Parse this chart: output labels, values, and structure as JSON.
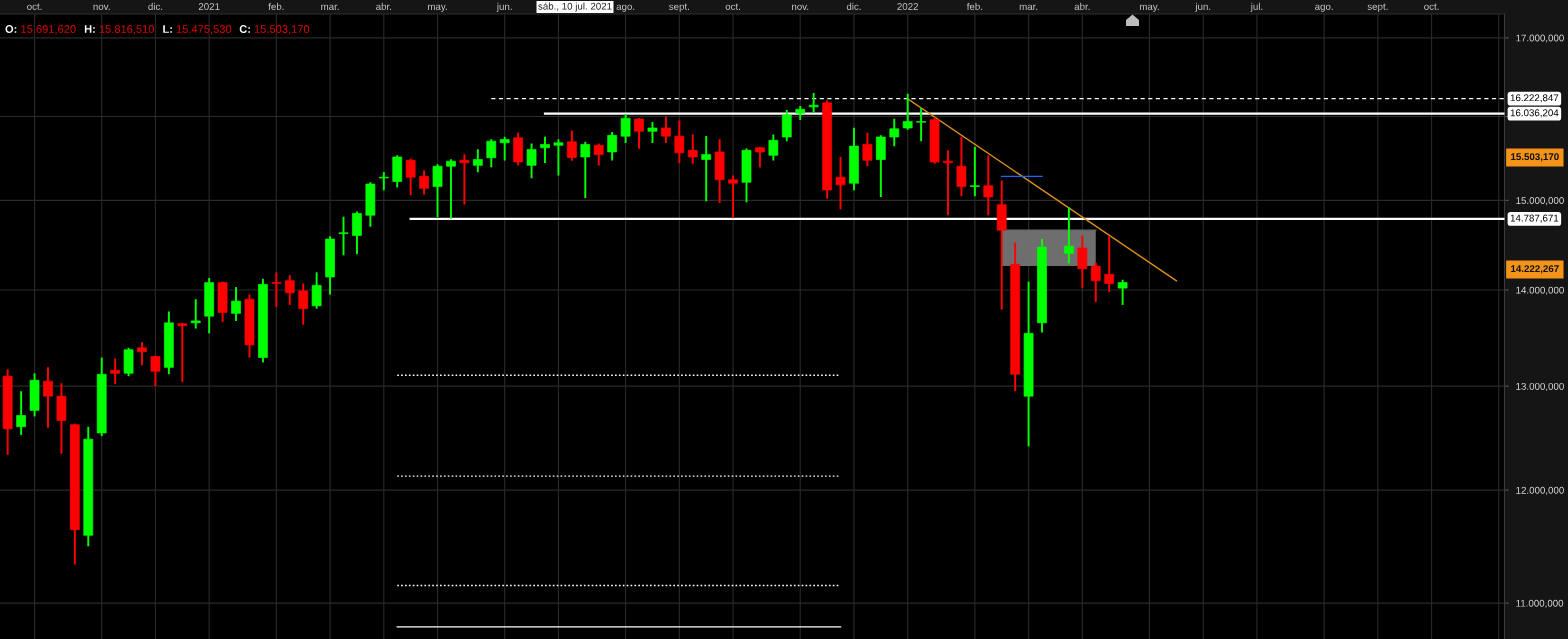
{
  "chart_data": {
    "type": "candlestick",
    "x": [
      "2020-09-19",
      "2020-09-26",
      "2020-10-03",
      "2020-10-10",
      "2020-10-17",
      "2020-10-24",
      "2020-10-31",
      "2020-11-07",
      "2020-11-14",
      "2020-11-21",
      "2020-11-28",
      "2020-12-05",
      "2020-12-12",
      "2020-12-19",
      "2020-12-26",
      "2021-01-02",
      "2021-01-09",
      "2021-01-16",
      "2021-01-23",
      "2021-01-30",
      "2021-02-06",
      "2021-02-13",
      "2021-02-20",
      "2021-02-27",
      "2021-03-06",
      "2021-03-13",
      "2021-03-20",
      "2021-03-27",
      "2021-04-03",
      "2021-04-10",
      "2021-04-17",
      "2021-04-24",
      "2021-05-01",
      "2021-05-08",
      "2021-05-15",
      "2021-05-22",
      "2021-05-29",
      "2021-06-05",
      "2021-06-12",
      "2021-06-19",
      "2021-06-26",
      "2021-07-03",
      "2021-07-10",
      "2021-07-17",
      "2021-07-24",
      "2021-07-31",
      "2021-08-07",
      "2021-08-14",
      "2021-08-21",
      "2021-08-28",
      "2021-09-04",
      "2021-09-11",
      "2021-09-18",
      "2021-09-25",
      "2021-10-02",
      "2021-10-09",
      "2021-10-16",
      "2021-10-23",
      "2021-10-30",
      "2021-11-06",
      "2021-11-13",
      "2021-11-20",
      "2021-11-27",
      "2021-12-04",
      "2021-12-11",
      "2021-12-18",
      "2021-12-25",
      "2022-01-01",
      "2022-01-08",
      "2022-01-15",
      "2022-01-22",
      "2022-01-29",
      "2022-02-05",
      "2022-02-12",
      "2022-02-19",
      "2022-02-26",
      "2022-03-05",
      "2022-03-12",
      "2022-03-26",
      "2022-04-02",
      "2022-04-09",
      "2022-04-16",
      "2022-04-23"
    ],
    "ohlc": [
      [
        13100,
        13160,
        12340,
        12580
      ],
      [
        12600,
        12940,
        12530,
        12710
      ],
      [
        12760,
        13120,
        12710,
        13060
      ],
      [
        13050,
        13180,
        12600,
        12900
      ],
      [
        12900,
        13020,
        12350,
        12660
      ],
      [
        12620,
        12620,
        11340,
        11640
      ],
      [
        11590,
        12590,
        11500,
        12480
      ],
      [
        12540,
        13280,
        12520,
        13120
      ],
      [
        13160,
        13270,
        13030,
        13130
      ],
      [
        13130,
        13380,
        13110,
        13370
      ],
      [
        13390,
        13440,
        13220,
        13350
      ],
      [
        13300,
        13300,
        13010,
        13150
      ],
      [
        13190,
        13760,
        13130,
        13650
      ],
      [
        13640,
        13640,
        13050,
        13620
      ],
      [
        13650,
        13890,
        13600,
        13670
      ],
      [
        13720,
        14120,
        13550,
        14080
      ],
      [
        14080,
        14080,
        13670,
        13760
      ],
      [
        13750,
        14020,
        13680,
        13880
      ],
      [
        13900,
        13940,
        13300,
        13420
      ],
      [
        13290,
        14110,
        13250,
        14060
      ],
      [
        14080,
        14180,
        13830,
        14070
      ],
      [
        14100,
        14150,
        13850,
        13970
      ],
      [
        13990,
        14060,
        13640,
        13800
      ],
      [
        13830,
        14180,
        13810,
        14050
      ],
      [
        14140,
        14580,
        13960,
        14560
      ],
      [
        14620,
        14800,
        14390,
        14630
      ],
      [
        14600,
        14860,
        14400,
        14850
      ],
      [
        14830,
        15200,
        14710,
        15190
      ],
      [
        15260,
        15320,
        15130,
        15270
      ],
      [
        15220,
        15520,
        15160,
        15510
      ],
      [
        15470,
        15480,
        15070,
        15270
      ],
      [
        15280,
        15340,
        15080,
        15140
      ],
      [
        15160,
        15410,
        14820,
        15400
      ],
      [
        15400,
        15470,
        14800,
        15460
      ],
      [
        15470,
        15530,
        14960,
        15440
      ],
      [
        15410,
        15590,
        15340,
        15480
      ],
      [
        15500,
        15710,
        15400,
        15700
      ],
      [
        15680,
        15740,
        15480,
        15720
      ],
      [
        15740,
        15790,
        15420,
        15450
      ],
      [
        15410,
        15660,
        15270,
        15600
      ],
      [
        15620,
        15740,
        15450,
        15660
      ],
      [
        15650,
        15710,
        15300,
        15680
      ],
      [
        15691.62,
        15816.51,
        15475.53,
        15503.17
      ],
      [
        15510,
        15680,
        15040,
        15660
      ],
      [
        15650,
        15660,
        15420,
        15540
      ],
      [
        15570,
        15800,
        15480,
        15770
      ],
      [
        15760,
        16020,
        15690,
        15980
      ],
      [
        15970,
        15970,
        15620,
        15820
      ],
      [
        15820,
        15920,
        15690,
        15860
      ],
      [
        15860,
        15990,
        15690,
        15760
      ],
      [
        15760,
        15940,
        15450,
        15560
      ],
      [
        15590,
        15770,
        15440,
        15510
      ],
      [
        15480,
        15750,
        15000,
        15540
      ],
      [
        15570,
        15710,
        14980,
        15240
      ],
      [
        15240,
        15280,
        14810,
        15200
      ],
      [
        15210,
        15600,
        14990,
        15590
      ],
      [
        15620,
        15620,
        15400,
        15570
      ],
      [
        15530,
        15770,
        15480,
        15710
      ],
      [
        15750,
        16070,
        15710,
        16020
      ],
      [
        16040,
        16120,
        15970,
        16090
      ],
      [
        16120,
        16280,
        16060,
        16140
      ],
      [
        16170,
        16190,
        15030,
        15120
      ],
      [
        15270,
        15500,
        14910,
        15180
      ],
      [
        15200,
        15850,
        15130,
        15640
      ],
      [
        15660,
        15790,
        15410,
        15470
      ],
      [
        15480,
        15760,
        15050,
        15750
      ],
      [
        15750,
        15960,
        15650,
        15850
      ],
      [
        15860,
        16270,
        15850,
        15940
      ],
      [
        15930,
        16090,
        15710,
        15940
      ],
      [
        15960,
        15980,
        15440,
        15450
      ],
      [
        15460,
        15580,
        14840,
        15440
      ],
      [
        15400,
        15740,
        15060,
        15160
      ],
      [
        15160,
        15620,
        15060,
        15170
      ],
      [
        15170,
        15520,
        14840,
        15040
      ],
      [
        14950,
        15220,
        13800,
        14660
      ],
      [
        14280,
        14510,
        12960,
        13120
      ],
      [
        12900,
        14080,
        12420,
        13540
      ],
      [
        13650,
        14550,
        13560,
        14470
      ],
      [
        14400,
        14910,
        14300,
        14480
      ],
      [
        14460,
        14590,
        14030,
        14230
      ],
      [
        14260,
        14290,
        13880,
        14100
      ],
      [
        14170,
        14580,
        13990,
        14070
      ],
      [
        14020,
        14100,
        13850,
        14080
      ]
    ],
    "colors": [
      "#ff0000",
      "#00ff00",
      "#00ff00",
      "#ff0000",
      "#ff0000",
      "#ff0000",
      "#00ff00",
      "#00ff00",
      "#ff0000",
      "#00ff00",
      "#ff0000",
      "#ff0000",
      "#00ff00",
      "#ff0000",
      "#00ff00",
      "#00ff00",
      "#ff0000",
      "#00ff00",
      "#ff0000",
      "#00ff00",
      "#ff0000",
      "#ff0000",
      "#ff0000",
      "#00ff00",
      "#00ff00",
      "#00ff00",
      "#00ff00",
      "#00ff00",
      "#00ff00",
      "#00ff00",
      "#ff0000",
      "#ff0000",
      "#00ff00",
      "#00ff00",
      "#ff0000",
      "#00ff00",
      "#00ff00",
      "#00ff00",
      "#ff0000",
      "#00ff00",
      "#00ff00",
      "#00ff00",
      "#ff0000",
      "#00ff00",
      "#ff0000",
      "#00ff00",
      "#00ff00",
      "#ff0000",
      "#00ff00",
      "#ff0000",
      "#ff0000",
      "#ff0000",
      "#00ff00",
      "#ff0000",
      "#ff0000",
      "#00ff00",
      "#ff0000",
      "#00ff00",
      "#00ff00",
      "#00ff00",
      "#00ff00",
      "#ff0000",
      "#ff0000",
      "#00ff00",
      "#ff0000",
      "#00ff00",
      "#00ff00",
      "#00ff00",
      "#00ff00",
      "#ff0000",
      "#ff0000",
      "#ff0000",
      "#00ff00",
      "#ff0000",
      "#ff0000",
      "#ff0000",
      "#00ff00",
      "#00ff00",
      "#00ff00",
      "#ff0000",
      "#ff0000",
      "#ff0000",
      "#00ff00"
    ],
    "series": [
      {
        "type": "line",
        "color": "#6e6e6e",
        "line_style": "solid",
        "x": [
          "2022-02-19",
          "2022-04-09"
        ],
        "values": [
          14660,
          14660
        ],
        "lower": [
          14260,
          14260
        ],
        "upper": [
          14660,
          14660
        ]
      },
      {
        "type": "line",
        "color": "#ffffff",
        "line_style": "dashed",
        "x": [
          "2021-05-29",
          "2022-11-08"
        ],
        "values": [
          16222.847,
          16222.847
        ],
        "value_labels": [
          null,
          "16.222,847"
        ]
      },
      {
        "type": "line",
        "color": "#ffffff",
        "line_style": "solid",
        "x": [
          "2021-06-26",
          "2022-11-08"
        ],
        "values": [
          16036.204,
          16036.204
        ],
        "value_labels": [
          null,
          "16.036,204"
        ]
      },
      {
        "type": "line",
        "color": "#ffffff",
        "line_style": "solid",
        "x": [
          "2021-04-17",
          "2022-11-08"
        ],
        "values": [
          14787.671,
          14787.671
        ],
        "value_labels": [
          null,
          "14.787,671"
        ]
      },
      {
        "type": "line",
        "color": "#e0901a",
        "line_style": "solid",
        "x": [
          "2022-01-01",
          "2022-05-21"
        ],
        "values": [
          16220,
          14100
        ]
      },
      {
        "type": "line",
        "color": "#1e64ff",
        "line_style": "solid",
        "x": [
          "2022-02-19",
          "2022-03-12"
        ],
        "values": [
          15280,
          15280
        ]
      },
      {
        "type": "line",
        "color": "#ffffff",
        "line_style": "dotted",
        "x": [
          "2021-04-10",
          "2021-11-27"
        ],
        "values": [
          13110,
          13110
        ]
      },
      {
        "type": "line",
        "color": "#ffffff",
        "line_style": "dotted",
        "x": [
          "2021-04-10",
          "2021-11-27"
        ],
        "values": [
          12130,
          12130
        ]
      },
      {
        "type": "line",
        "color": "#ffffff",
        "line_style": "dotted",
        "x": [
          "2021-04-10",
          "2021-11-27"
        ],
        "values": [
          11150,
          11150
        ]
      },
      {
        "type": "line",
        "color": "#ffffff",
        "line_style": "solid",
        "x": [
          "2021-04-10",
          "2021-11-27"
        ],
        "values": [
          10800,
          10800
        ]
      }
    ],
    "xlim": [
      "2020-09-15",
      "2022-11-08"
    ],
    "xticks": [
      {
        "value": "2020-10-03",
        "label": "oct."
      },
      {
        "value": "2020-11-07",
        "label": "nov."
      },
      {
        "value": "2020-12-05",
        "label": "dic."
      },
      {
        "value": "2021-01-02",
        "label": "2021"
      },
      {
        "value": "2021-02-06",
        "label": "feb."
      },
      {
        "value": "2021-03-06",
        "label": "mar."
      },
      {
        "value": "2021-04-03",
        "label": "abr."
      },
      {
        "value": "2021-05-01",
        "label": "may."
      },
      {
        "value": "2021-06-05",
        "label": "jun."
      },
      {
        "value": "2021-07-03",
        "label": null
      },
      {
        "value": "2021-08-07",
        "label": "ago."
      },
      {
        "value": "2021-09-04",
        "label": "sept."
      },
      {
        "value": "2021-10-02",
        "label": "oct."
      },
      {
        "value": "2021-11-06",
        "label": "nov."
      },
      {
        "value": "2021-12-04",
        "label": "dic."
      },
      {
        "value": "2022-01-01",
        "label": "2022"
      },
      {
        "value": "2022-02-05",
        "label": "feb."
      },
      {
        "value": "2022-03-05",
        "label": "mar."
      },
      {
        "value": "2022-04-02",
        "label": "abr."
      },
      {
        "value": "2022-05-07",
        "label": "may."
      },
      {
        "value": "2022-06-04",
        "label": "jun."
      },
      {
        "value": "2022-07-02",
        "label": "jul."
      },
      {
        "value": "2022-08-06",
        "label": "ago."
      },
      {
        "value": "2022-09-03",
        "label": "sept."
      },
      {
        "value": "2022-10-01",
        "label": "oct."
      },
      {
        "value": "2022-11-05",
        "label": null
      }
    ],
    "ylim": [
      10700,
      17315
    ],
    "yticks": [
      {
        "value": 11000,
        "label": "11.000,000"
      },
      {
        "value": 12000,
        "label": "12.000,000"
      },
      {
        "value": 13000,
        "label": "13.000,000"
      },
      {
        "value": 14000,
        "label": "14.000,000"
      },
      {
        "value": 15000,
        "label": "15.000,000"
      },
      {
        "value": 16000,
        "label": null
      },
      {
        "value": 17000,
        "label": "17.000,000"
      }
    ],
    "log": true,
    "grid": true,
    "annotations": [
      "O:",
      "15.691,620",
      "H:",
      "15.816,510",
      "L:",
      "15.475,530",
      "C:",
      "15.503,170",
      "sáb., 10 jul. 2021",
      "15.503,170",
      "14.222,267"
    ]
  }
}
